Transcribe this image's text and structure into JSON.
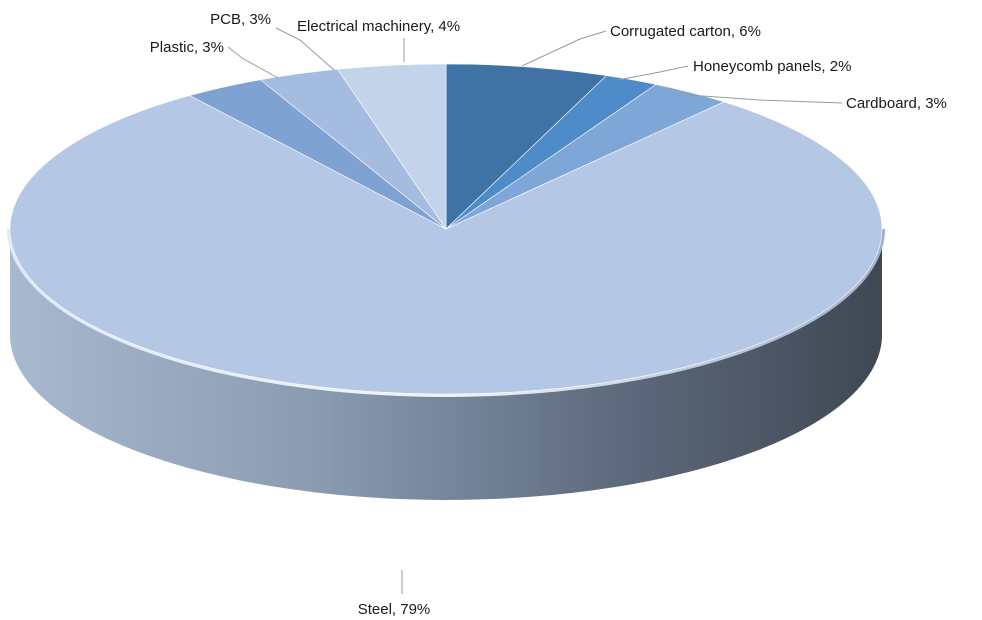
{
  "chart_data": {
    "type": "pie",
    "style": "3d",
    "title": "",
    "slices": [
      {
        "label": "Corrugated carton, 6%",
        "value": 6,
        "color": "#3f73a5"
      },
      {
        "label": "Honeycomb panels, 2%",
        "value": 2,
        "color": "#4d8cc8"
      },
      {
        "label": "Cardboard, 3%",
        "value": 3,
        "color": "#7ea7d8"
      },
      {
        "label": "Steel, 79%",
        "value": 79,
        "color": "#b4c8e6"
      },
      {
        "label": "Plastic, 3%",
        "value": 3,
        "color": "#7ea3d3"
      },
      {
        "label": "PCB, 3%",
        "value": 3,
        "color": "#a3bcdf"
      },
      {
        "label": "Electrical machinery, 4%",
        "value": 4,
        "color": "#c2d3ea"
      }
    ],
    "legend": "none",
    "data_labels": "outside-with-leader-lines"
  }
}
